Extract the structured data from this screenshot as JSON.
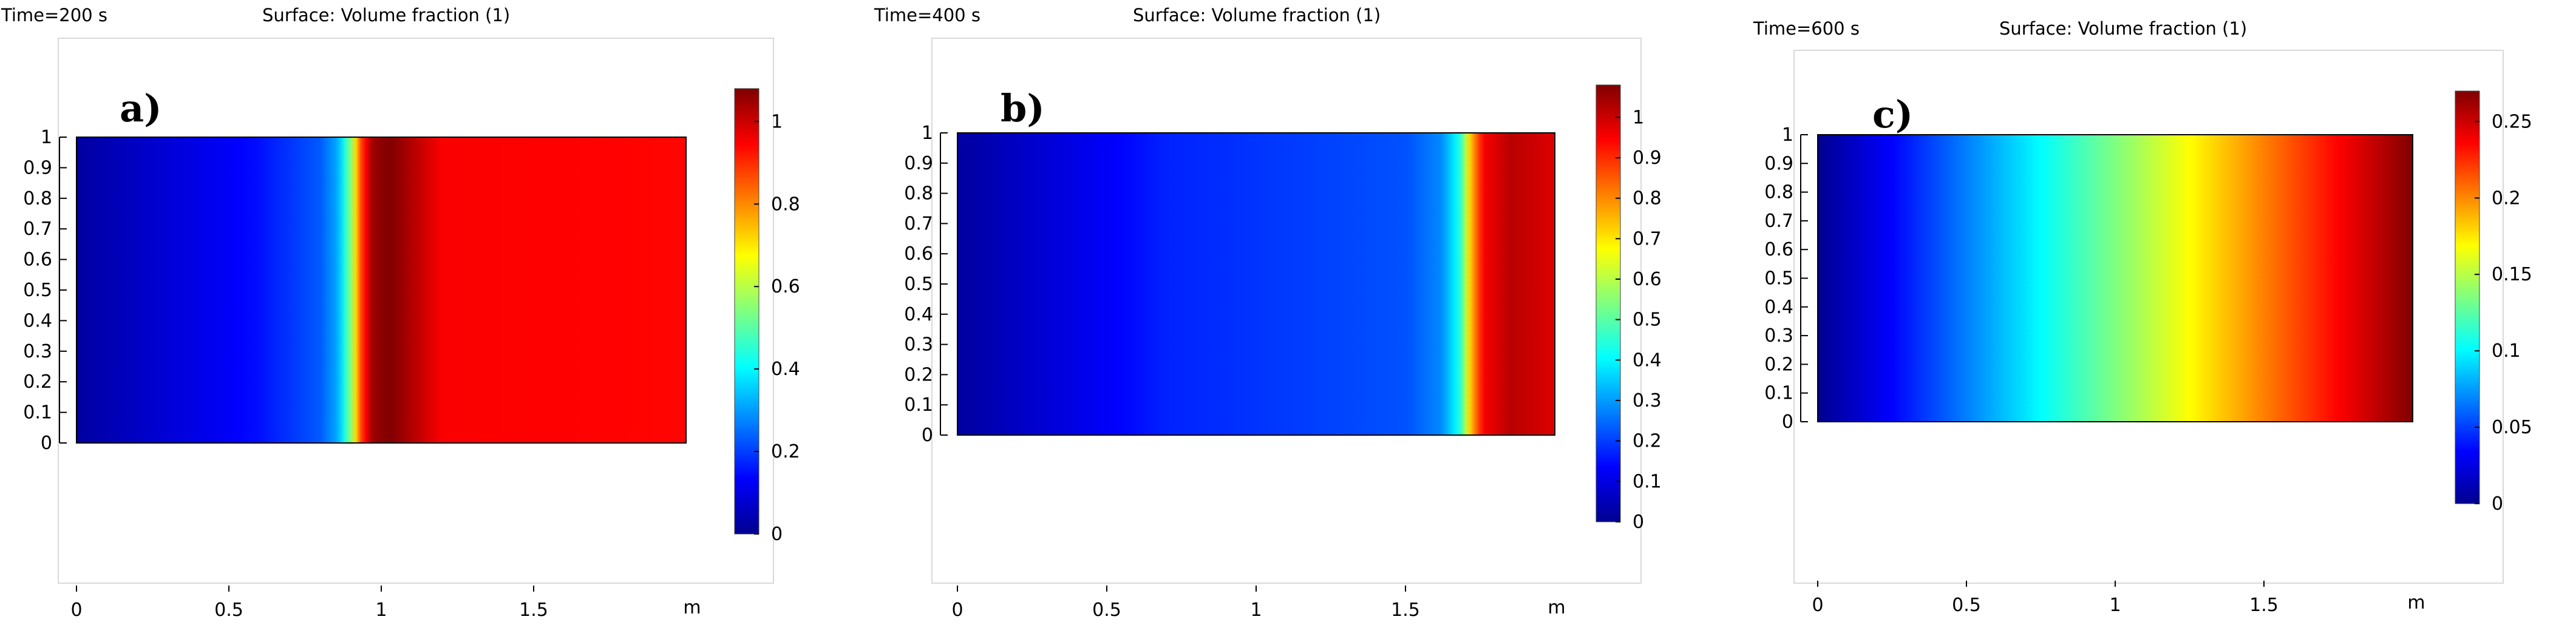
{
  "colors": {
    "jet": [
      "#00008f",
      "#0000ff",
      "#0080ff",
      "#00ffff",
      "#80ff80",
      "#ffff00",
      "#ff8000",
      "#ff0000",
      "#800000"
    ]
  },
  "chart_data": [
    {
      "type": "heatmap",
      "panel_label": "a)",
      "time_label": "Time=200 s",
      "title": "Surface: Volume fraction (1)",
      "x_ticks": [
        "0",
        "0.5",
        "1",
        "1.5"
      ],
      "x_tick_values": [
        0,
        0.5,
        1,
        1.5
      ],
      "x_unit": "m",
      "y_ticks": [
        "0",
        "0.1",
        "0.2",
        "0.3",
        "0.4",
        "0.5",
        "0.6",
        "0.7",
        "0.8",
        "0.9",
        "1"
      ],
      "y_tick_values": [
        0,
        0.1,
        0.2,
        0.3,
        0.4,
        0.5,
        0.6,
        0.7,
        0.8,
        0.9,
        1
      ],
      "xlim": [
        -0.05,
        2.05
      ],
      "ylim": [
        -0.4,
        1.2
      ],
      "domain": {
        "x": [
          0,
          2
        ],
        "y": [
          0,
          1
        ]
      },
      "colorbar": {
        "min": 0,
        "max": 1.08,
        "ticks": [
          "0",
          "0.2",
          "0.4",
          "0.6",
          "0.8",
          "1"
        ],
        "tick_values": [
          0,
          0.2,
          0.4,
          0.6,
          0.8,
          1
        ]
      },
      "profile": {
        "x": [
          0,
          0.6,
          0.8,
          0.86,
          0.9,
          0.93,
          0.97,
          1.03,
          1.2,
          2.0
        ],
        "value": [
          0.02,
          0.15,
          0.23,
          0.32,
          0.55,
          0.85,
          1.05,
          1.08,
          0.95,
          0.94
        ]
      }
    },
    {
      "type": "heatmap",
      "panel_label": "b)",
      "time_label": "Time=400 s",
      "title": "Surface: Volume fraction (1)",
      "x_ticks": [
        "0",
        "0.5",
        "1",
        "1.5"
      ],
      "x_tick_values": [
        0,
        0.5,
        1,
        1.5
      ],
      "x_unit": "m",
      "y_ticks": [
        "0",
        "0.1",
        "0.2",
        "0.3",
        "0.4",
        "0.5",
        "0.6",
        "0.7",
        "0.8",
        "0.9",
        "1"
      ],
      "y_tick_values": [
        0,
        0.1,
        0.2,
        0.3,
        0.4,
        0.5,
        0.6,
        0.7,
        0.8,
        0.9,
        1
      ],
      "xlim": [
        -0.05,
        2.05
      ],
      "ylim": [
        -0.4,
        1.2
      ],
      "domain": {
        "x": [
          0,
          2
        ],
        "y": [
          0,
          1
        ]
      },
      "colorbar": {
        "min": 0,
        "max": 1.08,
        "ticks": [
          "0",
          "0.1",
          "0.2",
          "0.3",
          "0.4",
          "0.5",
          "0.6",
          "0.7",
          "0.8",
          "0.9",
          "1"
        ],
        "tick_values": [
          0,
          0.1,
          0.2,
          0.3,
          0.4,
          0.5,
          0.6,
          0.7,
          0.8,
          0.9,
          1
        ]
      },
      "profile": {
        "x": [
          0,
          0.7,
          1.5,
          1.62,
          1.68,
          1.72,
          1.76,
          1.85,
          2.0
        ],
        "value": [
          0.02,
          0.17,
          0.22,
          0.28,
          0.42,
          0.75,
          0.95,
          1.02,
          0.98
        ]
      }
    },
    {
      "type": "heatmap",
      "panel_label": "c)",
      "time_label": "Time=600 s",
      "title": "Surface: Volume fraction (1)",
      "x_ticks": [
        "0",
        "0.5",
        "1",
        "1.5"
      ],
      "x_tick_values": [
        0,
        0.5,
        1,
        1.5
      ],
      "x_unit": "m",
      "y_ticks": [
        "0",
        "0.1",
        "0.2",
        "0.3",
        "0.4",
        "0.5",
        "0.6",
        "0.7",
        "0.8",
        "0.9",
        "1"
      ],
      "y_tick_values": [
        0,
        0.1,
        0.2,
        0.3,
        0.4,
        0.5,
        0.6,
        0.7,
        0.8,
        0.9,
        1
      ],
      "xlim": [
        -0.05,
        2.05
      ],
      "ylim": [
        -0.4,
        1.2
      ],
      "domain": {
        "x": [
          0,
          2
        ],
        "y": [
          0,
          1
        ]
      },
      "colorbar": {
        "min": 0,
        "max": 0.27,
        "ticks": [
          "0",
          "0.05",
          "0.1",
          "0.15",
          "0.2",
          "0.25"
        ],
        "tick_values": [
          0,
          0.05,
          0.1,
          0.15,
          0.2,
          0.25
        ]
      },
      "profile": {
        "x": [
          0,
          2.0
        ],
        "value": [
          0.0,
          0.27
        ]
      }
    }
  ]
}
